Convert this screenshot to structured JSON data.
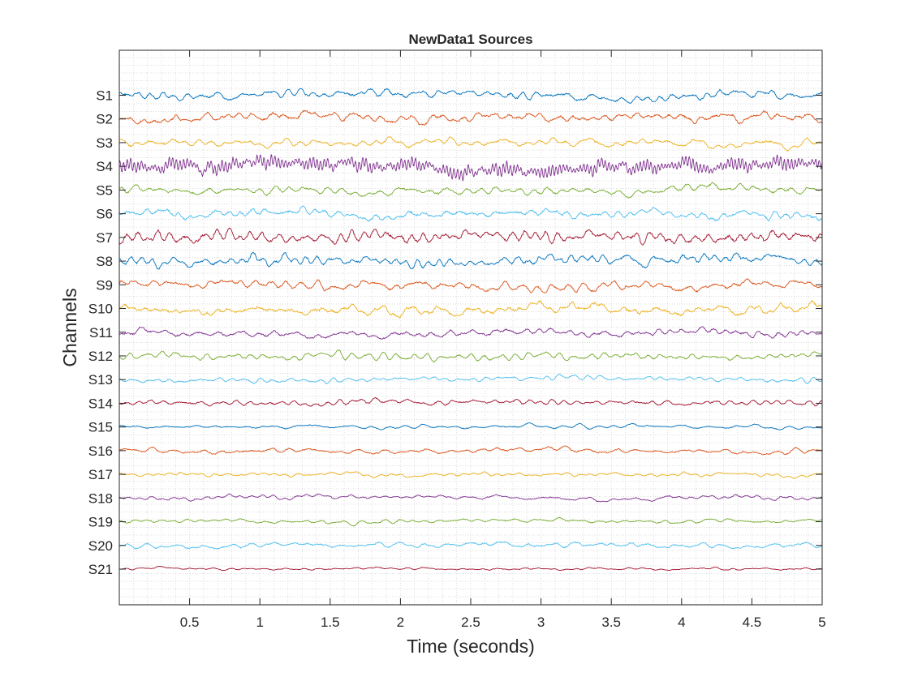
{
  "chart_data": {
    "type": "line",
    "title": "NewData1 Sources",
    "xlabel": "Time (seconds)",
    "ylabel": "Channels",
    "xlim": [
      0,
      5
    ],
    "x_ticks": [
      0.5,
      1,
      1.5,
      2,
      2.5,
      3,
      3.5,
      4,
      4.5,
      5
    ],
    "x_tick_labels": [
      "0.5",
      "1",
      "1.5",
      "2",
      "2.5",
      "3",
      "3.5",
      "4",
      "4.5",
      "5"
    ],
    "grid": "minor-dotted",
    "series": [
      {
        "name": "S1",
        "color": "#0072BD",
        "amplitude": 0.34
      },
      {
        "name": "S2",
        "color": "#D95319",
        "amplitude": 0.36
      },
      {
        "name": "S3",
        "color": "#EDB120",
        "amplitude": 0.36
      },
      {
        "name": "S4",
        "color": "#7E2F8E",
        "amplitude": 0.62
      },
      {
        "name": "S5",
        "color": "#77AC30",
        "amplitude": 0.34
      },
      {
        "name": "S6",
        "color": "#4DBEEE",
        "amplitude": 0.34
      },
      {
        "name": "S7",
        "color": "#A2142F",
        "amplitude": 0.4
      },
      {
        "name": "S8",
        "color": "#0072BD",
        "amplitude": 0.38
      },
      {
        "name": "S9",
        "color": "#D95319",
        "amplitude": 0.34
      },
      {
        "name": "S10",
        "color": "#EDB120",
        "amplitude": 0.4
      },
      {
        "name": "S11",
        "color": "#7E2F8E",
        "amplitude": 0.3
      },
      {
        "name": "S12",
        "color": "#77AC30",
        "amplitude": 0.26
      },
      {
        "name": "S13",
        "color": "#4DBEEE",
        "amplitude": 0.24
      },
      {
        "name": "S14",
        "color": "#A2142F",
        "amplitude": 0.24
      },
      {
        "name": "S15",
        "color": "#0072BD",
        "amplitude": 0.18
      },
      {
        "name": "S16",
        "color": "#D95319",
        "amplitude": 0.2
      },
      {
        "name": "S17",
        "color": "#EDB120",
        "amplitude": 0.18
      },
      {
        "name": "S18",
        "color": "#7E2F8E",
        "amplitude": 0.18
      },
      {
        "name": "S19",
        "color": "#77AC30",
        "amplitude": 0.18
      },
      {
        "name": "S20",
        "color": "#4DBEEE",
        "amplitude": 0.16
      },
      {
        "name": "S21",
        "color": "#A2142F",
        "amplitude": 0.12
      }
    ]
  }
}
